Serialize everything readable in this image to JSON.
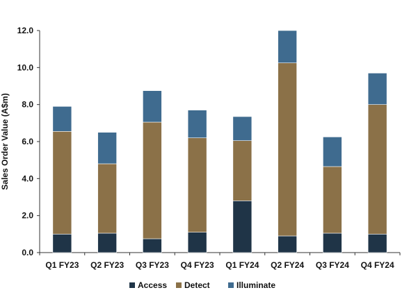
{
  "chart_data": {
    "type": "bar",
    "stacked": true,
    "categories": [
      "Q1 FY23",
      "Q2 FY23",
      "Q3 FY23",
      "Q4 FY23",
      "Q1 FY24",
      "Q2 FY24",
      "Q3 FY24",
      "Q4 FY24"
    ],
    "series": [
      {
        "name": "Access",
        "color": "#1f3447",
        "values": [
          1.0,
          1.05,
          0.75,
          1.1,
          2.8,
          0.9,
          1.05,
          1.0
        ]
      },
      {
        "name": "Detect",
        "color": "#8b7148",
        "values": [
          5.55,
          3.75,
          6.3,
          5.1,
          3.25,
          9.35,
          3.6,
          7.0
        ]
      },
      {
        "name": "Illuminate",
        "color": "#3f6b8f",
        "values": [
          1.35,
          1.7,
          1.7,
          1.5,
          1.3,
          1.75,
          1.6,
          1.7
        ]
      }
    ],
    "title": "",
    "xlabel": "",
    "ylabel": "Sales Order Value (A$m)",
    "ylim": [
      0,
      12
    ],
    "yticks": [
      0,
      2,
      4,
      6,
      8,
      10,
      12
    ],
    "ytick_labels": [
      "0.0",
      "2.0",
      "4.0",
      "6.0",
      "8.0",
      "10.0",
      "12.0"
    ],
    "grid": false,
    "legend": "bottom"
  }
}
